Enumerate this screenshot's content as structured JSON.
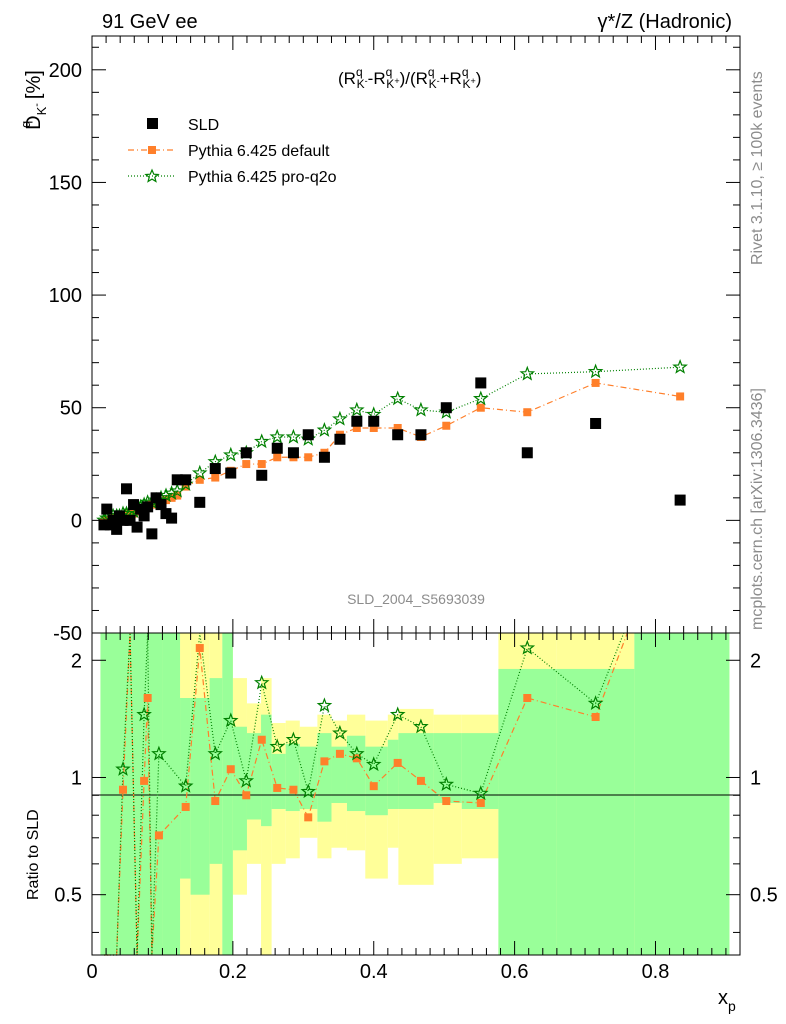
{
  "header": {
    "left_title": "91 GeV ee",
    "right_title": "γ*/Z (Hadronic)"
  },
  "side": {
    "rivet": "Rivet 3.1.10, ≥ 100k events",
    "mcplots": "mcplots.cern.ch [arXiv:1306.3436]"
  },
  "watermark": "SLD_2004_S5693039",
  "colors": {
    "data": "#000000",
    "default": "#ff7f2a",
    "proq2o": "#008000",
    "band_green": "#99ff99",
    "band_yellow": "#ffff99"
  },
  "chart_data": [
    {
      "type": "scatter",
      "formula": {
        "a": "(R",
        "b": "-R",
        "c": ")/(R",
        "d": "+R",
        "e": ")",
        "sup": "q",
        "sub1": "K",
        "sub1s": "-",
        "sub2": "K",
        "sub2s": "+"
      },
      "ylabel": {
        "main": "D",
        "sup": "q",
        "sub": "K",
        "subsup": "-",
        "unit": "[%]"
      },
      "ylim": [
        -50,
        215
      ],
      "xlim": [
        0,
        0.92
      ],
      "yticks": [
        -50,
        0,
        50,
        100,
        150,
        200
      ],
      "legend_position": "top-left",
      "series": [
        {
          "name": "SLD",
          "x": [
            0.017,
            0.021,
            0.026,
            0.03,
            0.035,
            0.039,
            0.044,
            0.049,
            0.054,
            0.059,
            0.064,
            0.069,
            0.074,
            0.079,
            0.085,
            0.091,
            0.098,
            0.105,
            0.113,
            0.121,
            0.133,
            0.153,
            0.175,
            0.197,
            0.219,
            0.241,
            0.263,
            0.286,
            0.307,
            0.33,
            0.352,
            0.376,
            0.4,
            0.434,
            0.467,
            0.503,
            0.552,
            0.618,
            0.715,
            0.835
          ],
          "y": [
            -2,
            5,
            -2,
            0,
            -4,
            2,
            0,
            14,
            0,
            7,
            -3,
            5,
            2,
            6,
            -6,
            10,
            7,
            3,
            1,
            18,
            18,
            8,
            23,
            21,
            30,
            20,
            32,
            30,
            38,
            28,
            36,
            44,
            44,
            38,
            38,
            50,
            61,
            30,
            43,
            9
          ]
        },
        {
          "name": "Pythia 6.425 default",
          "x": [
            0.017,
            0.021,
            0.026,
            0.03,
            0.035,
            0.039,
            0.044,
            0.049,
            0.054,
            0.059,
            0.064,
            0.069,
            0.074,
            0.079,
            0.085,
            0.091,
            0.098,
            0.105,
            0.113,
            0.121,
            0.133,
            0.153,
            0.175,
            0.197,
            0.219,
            0.241,
            0.263,
            0.286,
            0.307,
            0.33,
            0.352,
            0.376,
            0.4,
            0.434,
            0.467,
            0.503,
            0.552,
            0.618,
            0.715,
            0.835
          ],
          "y": [
            -1,
            0,
            0,
            1,
            1,
            2,
            2,
            2,
            3,
            3,
            4,
            4,
            5,
            6,
            7,
            7,
            8,
            9,
            10,
            11,
            15,
            18,
            19,
            22,
            25,
            25,
            28,
            28,
            28,
            30,
            38,
            41,
            41,
            41,
            37,
            42,
            50,
            48,
            61,
            55
          ]
        },
        {
          "name": "Pythia 6.425 pro-q2o",
          "x": [
            0.017,
            0.021,
            0.026,
            0.03,
            0.035,
            0.039,
            0.044,
            0.049,
            0.054,
            0.059,
            0.064,
            0.069,
            0.074,
            0.079,
            0.085,
            0.091,
            0.098,
            0.105,
            0.113,
            0.121,
            0.133,
            0.153,
            0.175,
            0.197,
            0.219,
            0.241,
            0.263,
            0.286,
            0.307,
            0.33,
            0.352,
            0.376,
            0.4,
            0.434,
            0.467,
            0.503,
            0.552,
            0.618,
            0.715,
            0.835
          ],
          "y": [
            0,
            1,
            1,
            2,
            2,
            2,
            3,
            3,
            4,
            4,
            5,
            6,
            7,
            8,
            8,
            9,
            10,
            11,
            12,
            13,
            16,
            21,
            26,
            29,
            30,
            35,
            37,
            37,
            36,
            40,
            45,
            49,
            47,
            54,
            49,
            48,
            54,
            65,
            66,
            68
          ]
        }
      ]
    },
    {
      "type": "scatter",
      "ylabel": "Ratio to SLD",
      "xlabel": {
        "main": "x",
        "sub": "p"
      },
      "ylim": [
        0.35,
        2.35
      ],
      "yticks": [
        0.5,
        1,
        2
      ],
      "xticks": [
        0,
        0.2,
        0.4,
        0.6,
        0.8
      ],
      "bands": [
        {
          "x0": 0.012,
          "x1": 0.1,
          "green": [
            0.35,
            2.35
          ],
          "yellow": [
            0.35,
            2.35
          ]
        },
        {
          "x0": 0.1,
          "x1": 0.125,
          "green": [
            0.35,
            2.35
          ],
          "yellow": [
            0.35,
            2.35
          ]
        },
        {
          "x0": 0.125,
          "x1": 0.14,
          "green": [
            0.55,
            1.6
          ],
          "yellow": [
            0.35,
            2.35
          ]
        },
        {
          "x0": 0.14,
          "x1": 0.167,
          "green": [
            0.5,
            1.6
          ],
          "yellow": [
            0.35,
            2.35
          ]
        },
        {
          "x0": 0.167,
          "x1": 0.185,
          "green": [
            0.6,
            1.8
          ],
          "yellow": [
            0.35,
            2.35
          ]
        },
        {
          "x0": 0.185,
          "x1": 0.2,
          "green": [
            0.35,
            2.35
          ],
          "yellow": [
            0.35,
            2.35
          ]
        },
        {
          "x0": 0.2,
          "x1": 0.22,
          "green": [
            0.65,
            1.35
          ],
          "yellow": [
            0.5,
            1.8
          ]
        },
        {
          "x0": 0.22,
          "x1": 0.24,
          "green": [
            0.78,
            1.3
          ],
          "yellow": [
            0.6,
            1.55
          ]
        },
        {
          "x0": 0.24,
          "x1": 0.255,
          "green": [
            0.75,
            1.45
          ],
          "yellow": [
            0.35,
            1.8
          ]
        },
        {
          "x0": 0.255,
          "x1": 0.275,
          "green": [
            0.83,
            1.15
          ],
          "yellow": [
            0.6,
            1.38
          ]
        },
        {
          "x0": 0.275,
          "x1": 0.295,
          "green": [
            0.82,
            1.22
          ],
          "yellow": [
            0.62,
            1.4
          ]
        },
        {
          "x0": 0.295,
          "x1": 0.32,
          "green": [
            0.83,
            1.2
          ],
          "yellow": [
            0.7,
            1.35
          ]
        },
        {
          "x0": 0.32,
          "x1": 0.34,
          "green": [
            0.77,
            1.3
          ],
          "yellow": [
            0.62,
            1.45
          ]
        },
        {
          "x0": 0.34,
          "x1": 0.362,
          "green": [
            0.86,
            1.2
          ],
          "yellow": [
            0.66,
            1.4
          ]
        },
        {
          "x0": 0.362,
          "x1": 0.388,
          "green": [
            0.82,
            1.28
          ],
          "yellow": [
            0.65,
            1.45
          ]
        },
        {
          "x0": 0.388,
          "x1": 0.42,
          "green": [
            0.8,
            1.2
          ],
          "yellow": [
            0.55,
            1.4
          ]
        },
        {
          "x0": 0.42,
          "x1": 0.435,
          "green": [
            0.83,
            1.25
          ],
          "yellow": [
            0.66,
            1.45
          ]
        },
        {
          "x0": 0.435,
          "x1": 0.485,
          "green": [
            0.83,
            1.3
          ],
          "yellow": [
            0.53,
            1.5
          ]
        },
        {
          "x0": 0.485,
          "x1": 0.525,
          "green": [
            0.86,
            1.3
          ],
          "yellow": [
            0.6,
            1.45
          ]
        },
        {
          "x0": 0.525,
          "x1": 0.577,
          "green": [
            0.83,
            1.3
          ],
          "yellow": [
            0.62,
            1.45
          ]
        },
        {
          "x0": 0.577,
          "x1": 0.66,
          "green": [
            0.35,
            1.9
          ],
          "yellow": [
            0.35,
            2.35
          ]
        },
        {
          "x0": 0.66,
          "x1": 0.77,
          "green": [
            0.35,
            1.9
          ],
          "yellow": [
            0.35,
            2.35
          ]
        },
        {
          "x0": 0.77,
          "x1": 0.905,
          "green": [
            0.35,
            2.35
          ],
          "yellow": [
            0.35,
            2.35
          ]
        }
      ],
      "series": [
        {
          "name": "Pythia 6.425 default",
          "x": [
            0.017,
            0.025,
            0.035,
            0.044,
            0.054,
            0.064,
            0.074,
            0.079,
            0.085,
            0.095,
            0.133,
            0.153,
            0.175,
            0.197,
            0.219,
            0.241,
            0.263,
            0.286,
            0.307,
            0.33,
            0.352,
            0.376,
            0.4,
            0.434,
            0.467,
            0.503,
            0.552,
            0.618,
            0.715,
            0.76
          ],
          "y": [
            0.35,
            0.35,
            0.35,
            0.93,
            2.35,
            0.35,
            0.98,
            1.6,
            0.35,
            0.71,
            0.84,
            2.15,
            0.87,
            1.05,
            0.9,
            1.25,
            0.94,
            0.93,
            0.79,
            1.1,
            1.15,
            1.12,
            0.95,
            1.09,
            0.98,
            0.87,
            0.86,
            1.6,
            1.43,
            2.35
          ]
        },
        {
          "name": "Pythia 6.425 pro-q2o",
          "x": [
            0.017,
            0.025,
            0.035,
            0.044,
            0.054,
            0.064,
            0.074,
            0.079,
            0.085,
            0.095,
            0.133,
            0.153,
            0.175,
            0.197,
            0.219,
            0.241,
            0.263,
            0.286,
            0.307,
            0.33,
            0.352,
            0.376,
            0.4,
            0.434,
            0.467,
            0.503,
            0.552,
            0.618,
            0.715,
            0.755
          ],
          "y": [
            0.35,
            0.35,
            0.35,
            1.05,
            2.35,
            0.35,
            1.45,
            2.35,
            0.35,
            1.15,
            0.95,
            2.35,
            1.15,
            1.4,
            0.98,
            1.75,
            1.2,
            1.25,
            0.92,
            1.53,
            1.3,
            1.15,
            1.08,
            1.45,
            1.35,
            0.96,
            0.91,
            2.15,
            1.55,
            2.35
          ]
        }
      ]
    }
  ]
}
